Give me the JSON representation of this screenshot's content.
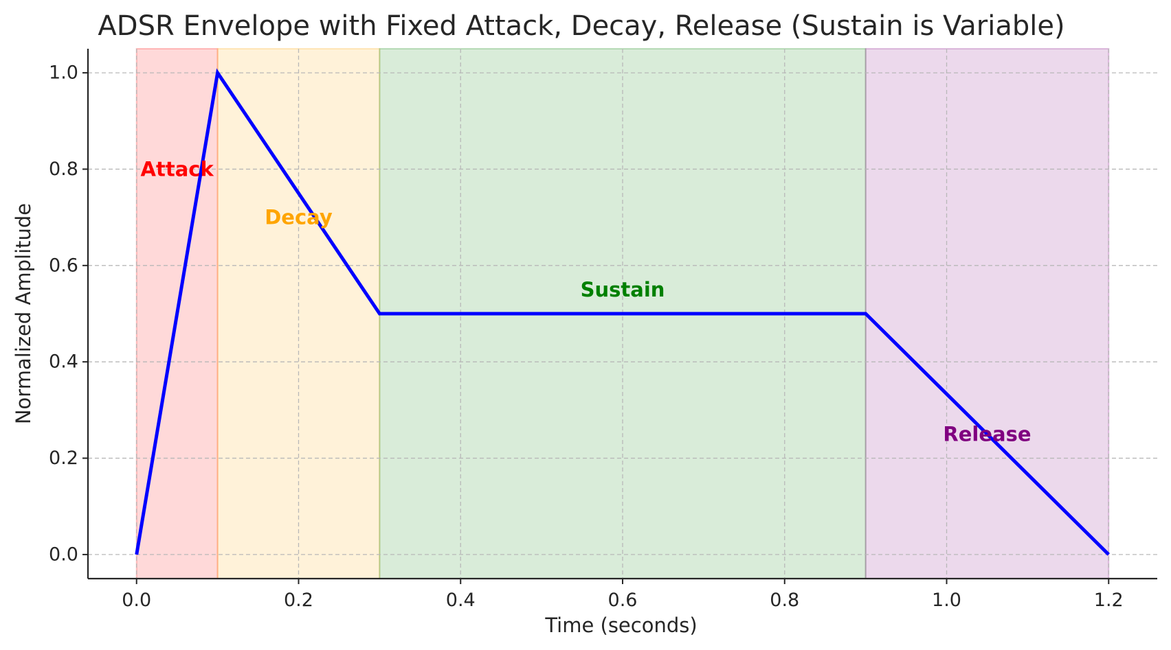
{
  "chart_data": {
    "type": "line",
    "title": "ADSR Envelope with Fixed Attack, Decay, Release (Sustain is Variable)",
    "xlabel": "Time (seconds)",
    "ylabel": "Normalized Amplitude",
    "xlim": [
      -0.06,
      1.26
    ],
    "ylim": [
      -0.05,
      1.05
    ],
    "xticks": [
      0.0,
      0.2,
      0.4,
      0.6,
      0.8,
      1.0,
      1.2
    ],
    "xtick_labels": [
      "0.0",
      "0.2",
      "0.4",
      "0.6",
      "0.8",
      "1.0",
      "1.2"
    ],
    "yticks": [
      0.0,
      0.2,
      0.4,
      0.6,
      0.8,
      1.0
    ],
    "ytick_labels": [
      "0.0",
      "0.2",
      "0.4",
      "0.6",
      "0.8",
      "1.0"
    ],
    "grid": true,
    "series": [
      {
        "x": [
          0.0,
          0.1,
          0.3,
          0.9,
          1.2
        ],
        "y": [
          0.0,
          1.0,
          0.5,
          0.5,
          0.0
        ],
        "color": "#0000ff"
      }
    ],
    "regions": [
      {
        "label": "Attack",
        "x_start": 0.0,
        "x_end": 0.1,
        "fill": "#ff0000",
        "text_color": "#ff0000",
        "label_x": 0.05,
        "label_y": 0.8
      },
      {
        "label": "Decay",
        "x_start": 0.1,
        "x_end": 0.3,
        "fill": "#ffa500",
        "text_color": "#ffa500",
        "label_x": 0.2,
        "label_y": 0.7
      },
      {
        "label": "Sustain",
        "x_start": 0.3,
        "x_end": 0.9,
        "fill": "#008000",
        "text_color": "#008000",
        "label_x": 0.6,
        "label_y": 0.55
      },
      {
        "label": "Release",
        "x_start": 0.9,
        "x_end": 1.2,
        "fill": "#800080",
        "text_color": "#800080",
        "label_x": 1.05,
        "label_y": 0.25
      }
    ]
  }
}
